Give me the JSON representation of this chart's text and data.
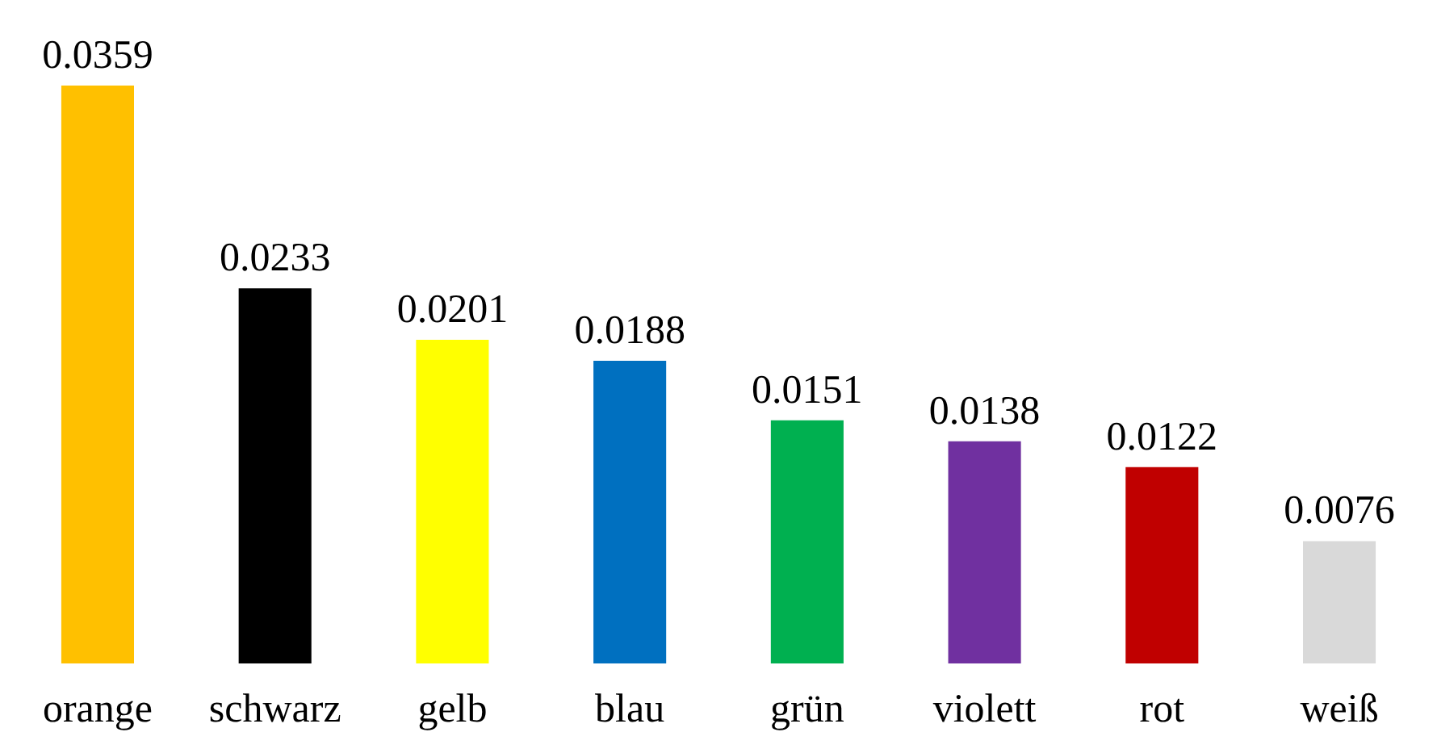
{
  "chart_data": {
    "type": "bar",
    "categories": [
      "orange",
      "schwarz",
      "gelb",
      "blau",
      "grün",
      "violett",
      "rot",
      "weiß"
    ],
    "values": [
      0.0359,
      0.0233,
      0.0201,
      0.0188,
      0.0151,
      0.0138,
      0.0122,
      0.0076
    ],
    "colors": [
      "#ffc000",
      "#000000",
      "#ffff00",
      "#0070c0",
      "#00b050",
      "#7030a0",
      "#c00000",
      "#d9d9d9"
    ],
    "data_labels": true
  }
}
